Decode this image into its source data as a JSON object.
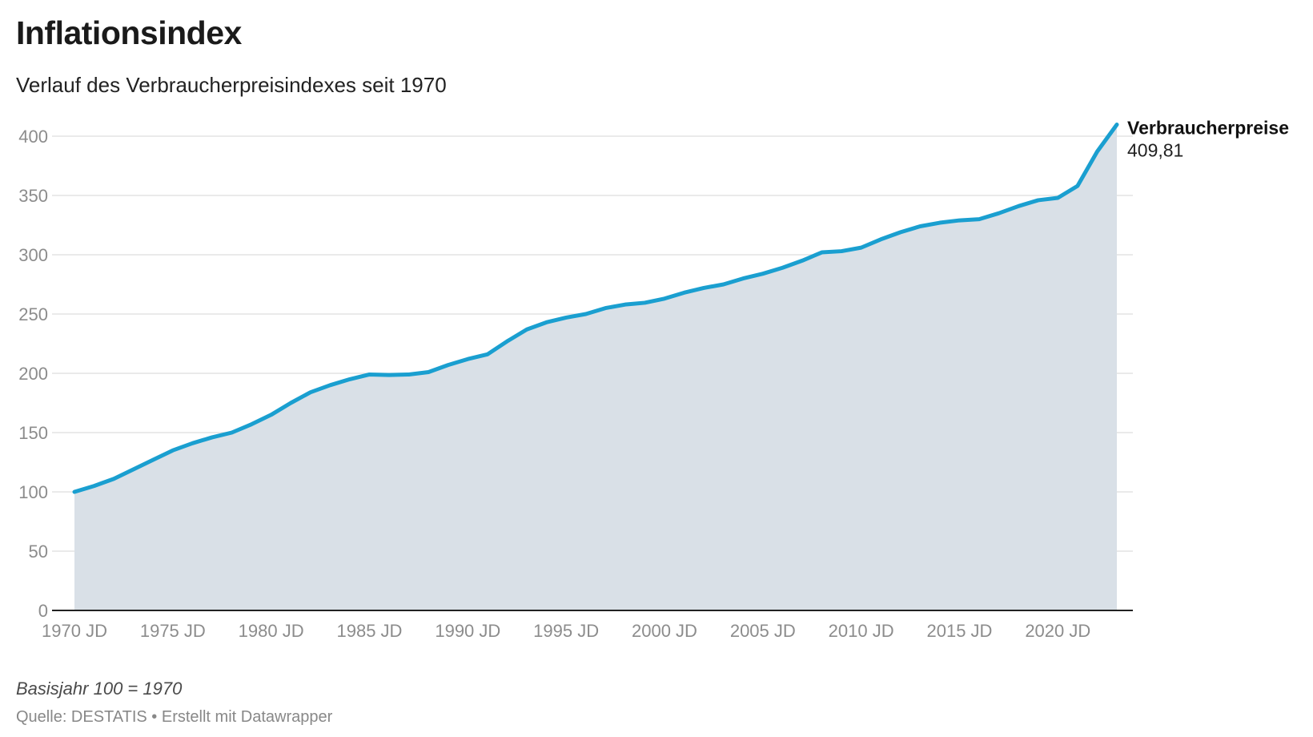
{
  "title": "Inflationsindex",
  "subtitle": "Verlauf des Verbraucherpreisindexes seit 1970",
  "note": "Basisjahr 100 = 1970",
  "source": "Quelle: DESTATIS • Erstellt mit Datawrapper",
  "colors": {
    "line": "#1a9fd0",
    "area": "#d9e0e7",
    "grid": "#e3e3e3",
    "axis": "#222222"
  },
  "chart_data": {
    "type": "area",
    "grid": true,
    "ylim": [
      0,
      400
    ],
    "yticks": [
      0,
      50,
      100,
      150,
      200,
      250,
      300,
      350,
      400
    ],
    "xticks": [
      1970,
      1975,
      1980,
      1985,
      1990,
      1995,
      2000,
      2005,
      2010,
      2015,
      2020
    ],
    "xtick_labels": [
      "1970 JD",
      "1975 JD",
      "1980 JD",
      "1985 JD",
      "1990 JD",
      "1995 JD",
      "2000 JD",
      "2005 JD",
      "2010 JD",
      "2015 JD",
      "2020 JD"
    ],
    "series": [
      {
        "name": "Verbraucherpreise",
        "end_label": "409,81",
        "x": [
          1970,
          1971,
          1972,
          1973,
          1974,
          1975,
          1976,
          1977,
          1978,
          1979,
          1980,
          1981,
          1982,
          1983,
          1984,
          1985,
          1986,
          1987,
          1988,
          1989,
          1990,
          1991,
          1992,
          1993,
          1994,
          1995,
          1996,
          1997,
          1998,
          1999,
          2000,
          2001,
          2002,
          2003,
          2004,
          2005,
          2006,
          2007,
          2008,
          2009,
          2010,
          2011,
          2012,
          2013,
          2014,
          2015,
          2016,
          2017,
          2018,
          2019,
          2020,
          2021,
          2022,
          2023
        ],
        "y": [
          100,
          105,
          111,
          119,
          127,
          135,
          141,
          146,
          150,
          157,
          165,
          175,
          184,
          190,
          195,
          199,
          198.6,
          199,
          201,
          207,
          212,
          216,
          227,
          237,
          243,
          247,
          250,
          255,
          258,
          259.5,
          263,
          268,
          272,
          275,
          280,
          284,
          289,
          295,
          302,
          303,
          306,
          313,
          319,
          324,
          327,
          329,
          330,
          335,
          341,
          346,
          348,
          358,
          387,
          409.81
        ]
      }
    ]
  }
}
